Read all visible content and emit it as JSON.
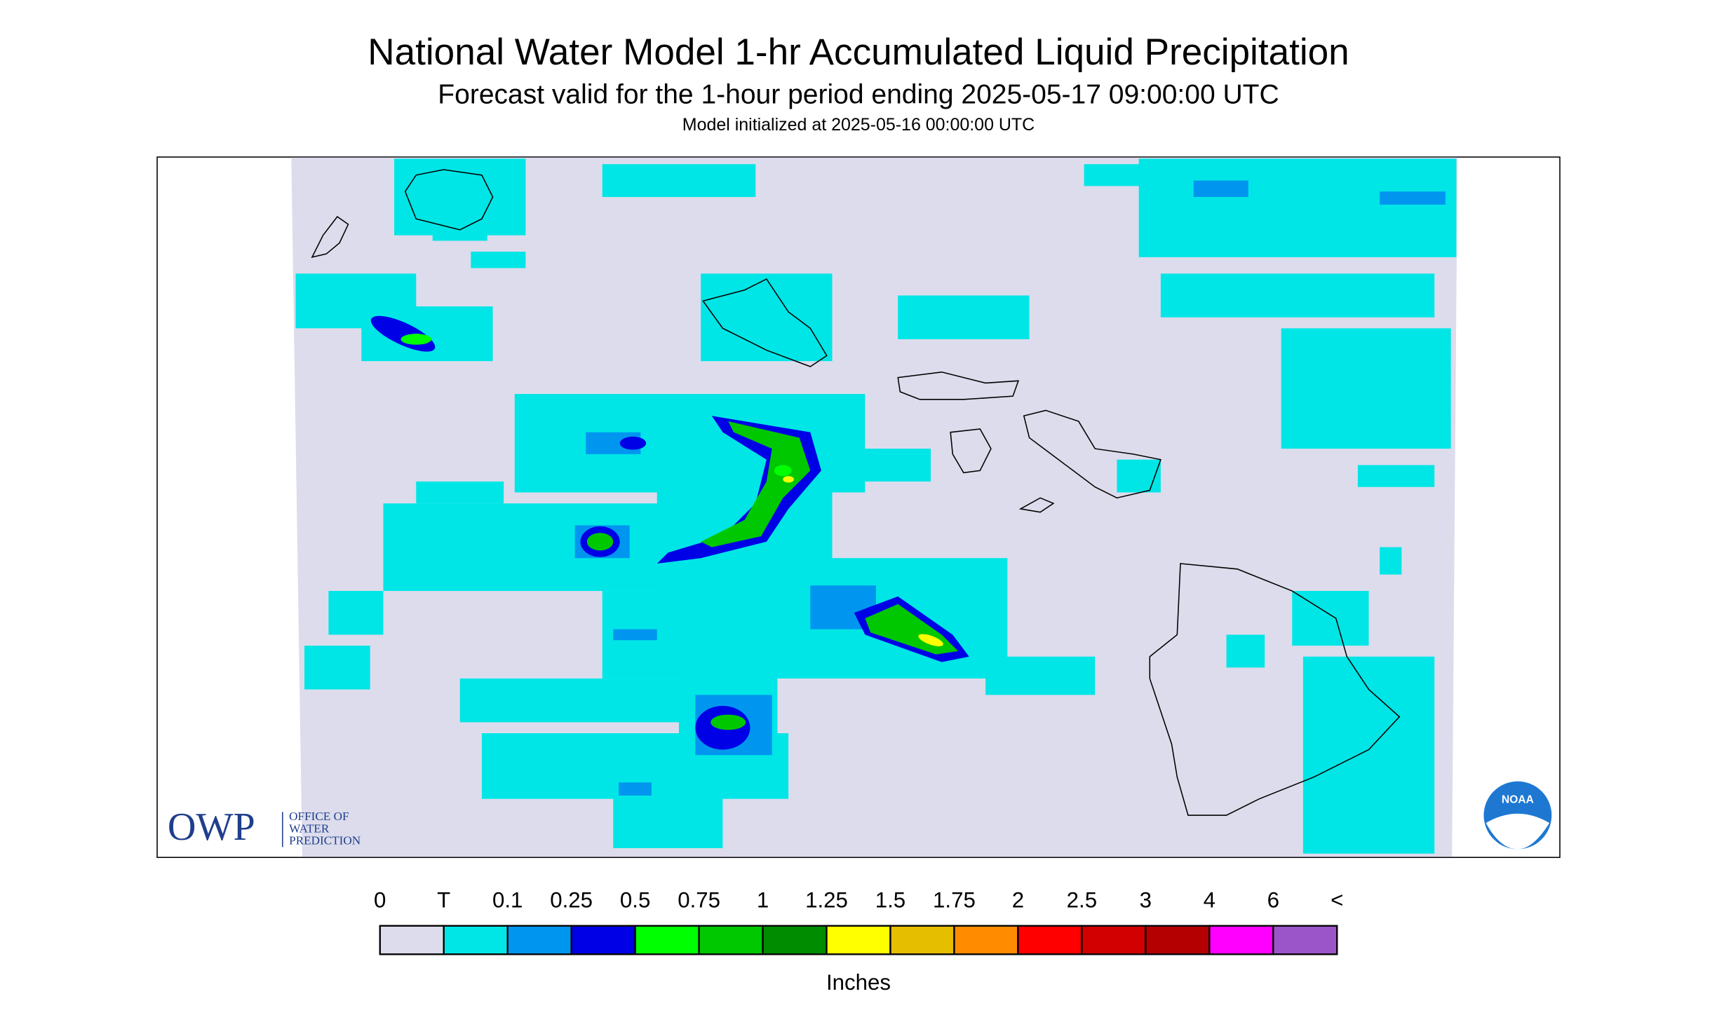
{
  "header": {
    "title": "National Water Model 1-hr Accumulated Liquid Precipitation",
    "subtitle": "Forecast valid for the 1-hour period ending 2025-05-17 09:00:00 UTC",
    "init": "Model initialized at 2025-05-16 00:00:00 UTC"
  },
  "legend": {
    "labels": [
      "0",
      "T",
      "0.1",
      "0.25",
      "0.5",
      "0.75",
      "1",
      "1.25",
      "1.5",
      "1.75",
      "2",
      "2.5",
      "3",
      "4",
      "6",
      "<"
    ],
    "colors": [
      "#dcdcec",
      "#00e6e6",
      "#0096f0",
      "#0000e6",
      "#00ff00",
      "#00c800",
      "#008c00",
      "#ffff00",
      "#e6be00",
      "#ff8c00",
      "#ff0000",
      "#d20000",
      "#b40000",
      "#ff00ff",
      "#9b55c8"
    ],
    "unit": "Inches"
  },
  "logos": {
    "owp": "OWP",
    "owp_lines": [
      "OFFICE OF",
      "WATER",
      "PREDICTION"
    ],
    "noaa": "NOAA"
  }
}
